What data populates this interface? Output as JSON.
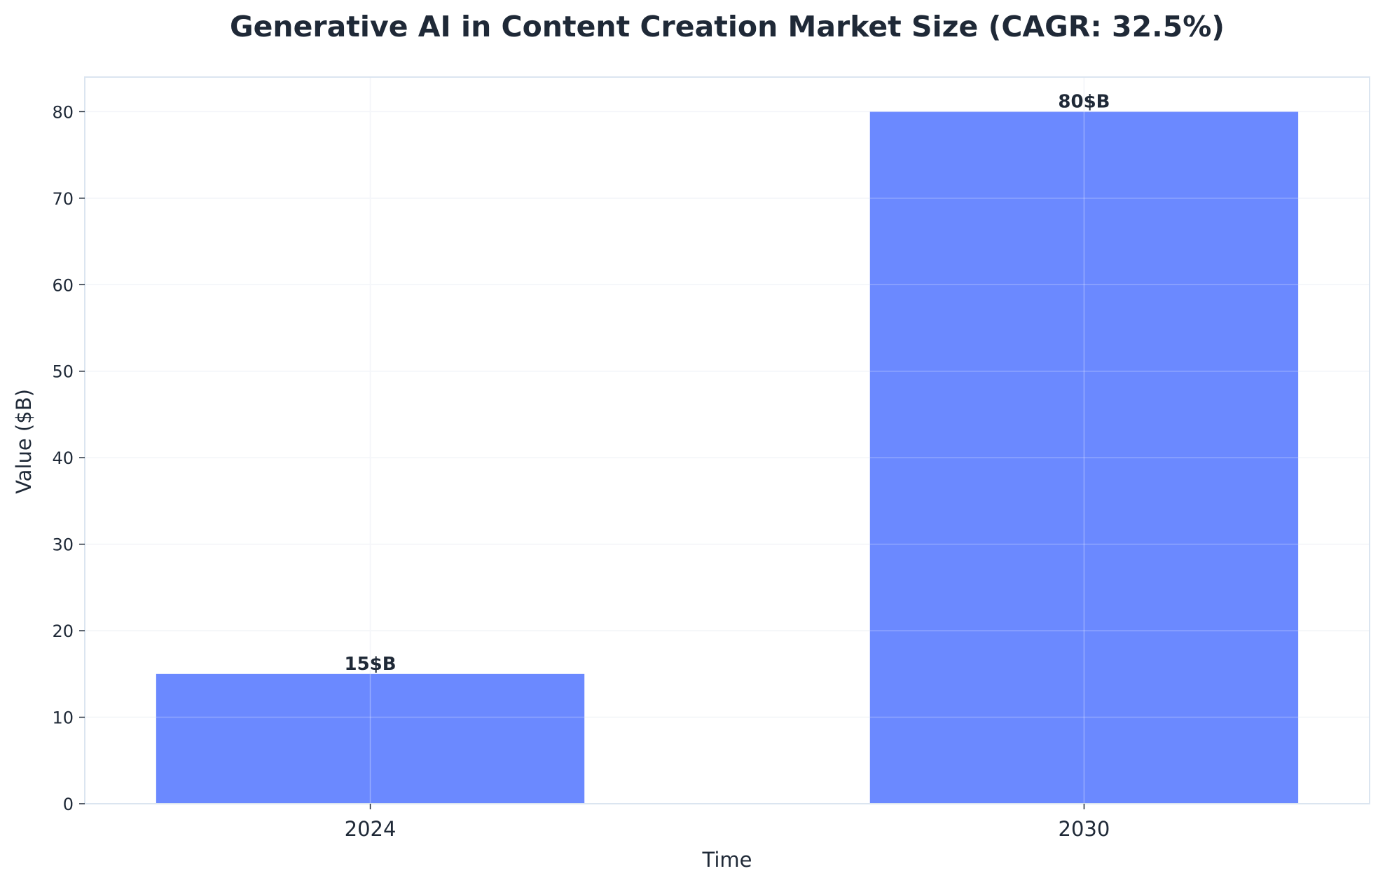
{
  "chart_data": {
    "type": "bar",
    "title": "Generative AI in Content Creation Market Size (CAGR: 32.5%)",
    "xlabel": "Time",
    "ylabel": "Value ($B)",
    "categories": [
      "2024",
      "2030"
    ],
    "values": [
      15,
      80
    ],
    "data_labels": [
      "15$B",
      "80$B"
    ],
    "ylim": [
      0,
      84
    ],
    "yticks": [
      0,
      10,
      20,
      30,
      40,
      50,
      60,
      70,
      80
    ],
    "grid": true,
    "colors": {
      "bar": "#6b89ff",
      "grid": "#eef1f6",
      "frame": "#dbe5f0",
      "text": "#1f2937"
    }
  }
}
